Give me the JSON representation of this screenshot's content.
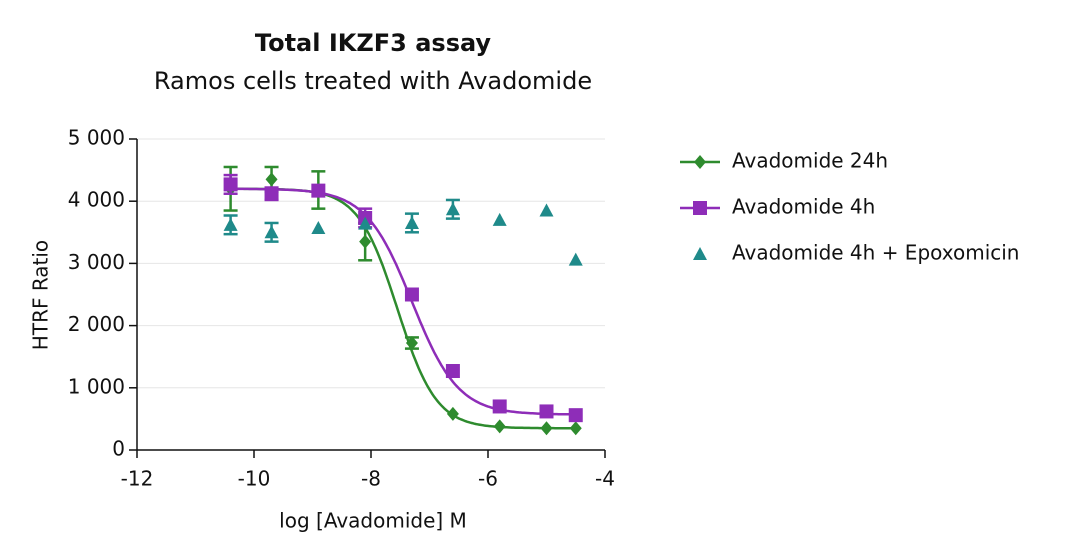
{
  "chart_data": {
    "type": "scatter",
    "title": "Total IKZF3 assay",
    "subtitle": "Ramos cells treated with Avadomide",
    "x_label": "log [Avadomide] M",
    "y_label": "HTRF Ratio",
    "xlim": [
      -12,
      -4
    ],
    "xticks": [
      -12,
      -10,
      -8,
      -6,
      -4
    ],
    "ylim": [
      0,
      5000
    ],
    "yticks": [
      0,
      {
        "value": 1000,
        "label": "1 000"
      },
      {
        "value": 2000,
        "label": "2 000"
      },
      {
        "value": 3000,
        "label": "3 000"
      },
      {
        "value": 4000,
        "label": "4 000"
      },
      {
        "value": 5000,
        "label": "5 000"
      }
    ],
    "grid": true,
    "legend": "right",
    "x": [
      -10.4,
      -9.7,
      -8.9,
      -8.1,
      -7.3,
      -6.6,
      -5.8,
      -5.0,
      -4.5
    ],
    "series": [
      {
        "name": "Avadomide 24h",
        "color": "#2e8b2e",
        "marker": "diamond",
        "line": true,
        "values": [
          4200,
          4350,
          4180,
          3350,
          1720,
          580,
          380,
          350,
          350
        ],
        "errors": [
          350,
          200,
          300,
          300,
          90,
          null,
          null,
          null,
          null
        ],
        "fit": {
          "top": 4200,
          "bottom": 350,
          "log_ec50": -7.55,
          "hill": 1.3
        }
      },
      {
        "name": "Avadomide 4h",
        "color": "#8e2db8",
        "marker": "square",
        "line": true,
        "values": [
          4270,
          4120,
          4170,
          3730,
          2500,
          1270,
          700,
          620,
          560
        ],
        "errors": [
          150,
          100,
          null,
          150,
          null,
          null,
          null,
          null,
          null
        ],
        "fit": {
          "top": 4200,
          "bottom": 570,
          "log_ec50": -7.3,
          "hill": 1.1
        }
      },
      {
        "name": "Avadomide 4h + Epoxomicin",
        "color": "#1f8a8a",
        "marker": "triangle",
        "line": false,
        "values": [
          3620,
          3500,
          3570,
          3640,
          3650,
          3870,
          3700,
          3850,
          3060
        ],
        "errors": [
          150,
          150,
          null,
          null,
          150,
          150,
          null,
          null,
          null
        ]
      }
    ]
  }
}
